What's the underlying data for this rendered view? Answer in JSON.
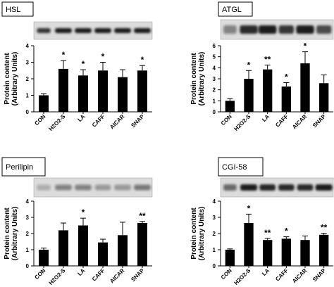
{
  "chart_data": [
    {
      "type": "bar",
      "title": "HSL",
      "ylabel": "Protein content (Arbitrary Units)",
      "ylabel_lines": [
        "Protein content",
        "(Arbitrary Units)"
      ],
      "categories": [
        "CON",
        "H2O2-S",
        "LA",
        "CAFF",
        "AICAR",
        "SNAP"
      ],
      "values": [
        1.0,
        2.6,
        2.2,
        2.5,
        2.1,
        2.5
      ],
      "errors": [
        0.1,
        0.5,
        0.35,
        0.5,
        0.45,
        0.3
      ],
      "significance": [
        "",
        "*",
        "*",
        "*",
        "",
        "*"
      ],
      "ylim": [
        0,
        4
      ],
      "yticks": [
        0,
        1,
        2,
        3,
        4
      ],
      "ytick_labels": [
        "0",
        "1",
        "2",
        "3",
        "4"
      ]
    },
    {
      "type": "bar",
      "title": "ATGL",
      "ylabel": "Protein content (Arbitrary Units)",
      "ylabel_lines": [
        "Protein content",
        "(Arbitrary Units)"
      ],
      "categories": [
        "CON",
        "H2O2-S",
        "LA",
        "CAFF",
        "AICAR",
        "SNAP"
      ],
      "values": [
        1.0,
        3.0,
        3.85,
        2.3,
        4.4,
        2.6
      ],
      "errors": [
        0.2,
        0.75,
        0.4,
        0.35,
        1.05,
        0.75
      ],
      "significance": [
        "",
        "*",
        "**",
        "*",
        "*",
        ""
      ],
      "ylim": [
        0,
        6
      ],
      "yticks": [
        0,
        1,
        2,
        3,
        4,
        5,
        6
      ],
      "ytick_labels": [
        "0",
        "1",
        "2",
        "3",
        "4",
        "5",
        "6"
      ]
    },
    {
      "type": "bar",
      "title": "Perilipin",
      "ylabel": "Protein content (Arbitrary Units)",
      "ylabel_lines": [
        "Protein content",
        "(Arbitrary Units)"
      ],
      "categories": [
        "CON",
        "H2O2-S",
        "LA",
        "CAFF",
        "AICAR",
        "SNAP"
      ],
      "values": [
        1.0,
        2.2,
        2.5,
        1.45,
        1.9,
        2.65
      ],
      "errors": [
        0.1,
        0.45,
        0.45,
        0.2,
        0.8,
        0.1
      ],
      "significance": [
        "",
        "",
        "*",
        "",
        "",
        "**"
      ],
      "ylim": [
        0,
        4
      ],
      "yticks": [
        0,
        1,
        2,
        3,
        4
      ],
      "ytick_labels": [
        "0",
        "1",
        "2",
        "3",
        "4"
      ]
    },
    {
      "type": "bar",
      "title": "CGI-58",
      "ylabel": "Protein content (Arbitrary Units)",
      "ylabel_lines": [
        "Protein content",
        "(Arbitrary Units)"
      ],
      "categories": [
        "CON",
        "H2O2-S",
        "LA",
        "CAFF",
        "AICAR",
        "SNAP"
      ],
      "values": [
        1.0,
        2.65,
        1.6,
        1.68,
        1.6,
        1.92
      ],
      "errors": [
        0.05,
        0.55,
        0.1,
        0.12,
        0.25,
        0.1
      ],
      "significance": [
        "",
        "*",
        "**",
        "*",
        "",
        "**"
      ],
      "ylim": [
        0,
        4
      ],
      "yticks": [
        0,
        1,
        2,
        3,
        4
      ],
      "ytick_labels": [
        "0",
        "1",
        "2",
        "3",
        "4"
      ]
    }
  ],
  "colors": {
    "bar": "#000000",
    "axis": "#000000",
    "blot_background": "#dcdcdc",
    "blot_band": "#1a1a1a"
  }
}
